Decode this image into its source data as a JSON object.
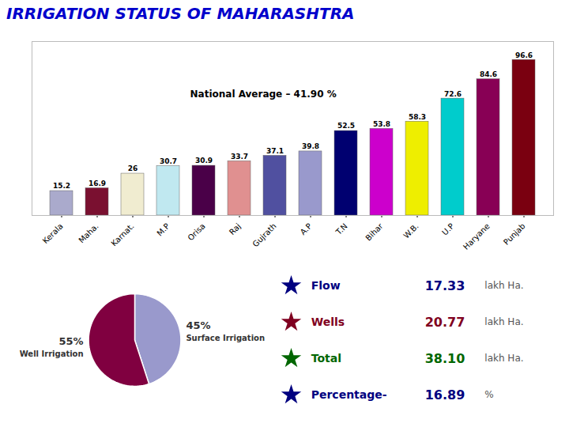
{
  "chart_data": [
    {
      "type": "bar",
      "title": "IRRIGATION STATUS OF MAHARASHTRA",
      "categories": [
        "Kerala",
        "Maha.",
        "Karnat.",
        "M.P",
        "Orisa",
        "Raj",
        "Gujrath",
        "A.P",
        "T.N",
        "Bihar",
        "W.B.",
        "U.P",
        "Haryane",
        "Punjab"
      ],
      "values": [
        15.2,
        16.9,
        26,
        30.7,
        30.9,
        33.7,
        37.1,
        39.8,
        52.5,
        53.8,
        58.3,
        72.6,
        84.6,
        96.6
      ],
      "colors": [
        "#aaaacc",
        "#7a1030",
        "#f0ecd0",
        "#c0e8f0",
        "#4a0048",
        "#e09090",
        "#5050a0",
        "#9999cc",
        "#000070",
        "#cc00cc",
        "#eeee00",
        "#00cccc",
        "#880055",
        "#7a0010"
      ],
      "ylim": [
        0,
        108
      ],
      "tick_labels": "x",
      "data_labels": true,
      "annotations": [
        "National Average – 41.90 %"
      ]
    },
    {
      "type": "pie",
      "categories": [
        "Surface Irrigation",
        "Well Irrigation"
      ],
      "values": [
        45,
        55
      ],
      "value_labels": [
        "45%",
        "55%"
      ],
      "colors": [
        "#9999cc",
        "#800040"
      ],
      "data_labels": true
    },
    {
      "type": "table",
      "categories": [
        "Flow",
        "Wells",
        "Total",
        "Percentage-"
      ],
      "values": [
        17.33,
        20.77,
        38.1,
        16.89
      ],
      "value_labels": [
        "17.33",
        "20.77",
        "38.10",
        "16.89"
      ],
      "units": [
        "lakh Ha.",
        "lakh Ha.",
        "lakh Ha.",
        "%"
      ],
      "colors": [
        "#000080",
        "#800020",
        "#006600",
        "#000080"
      ]
    }
  ]
}
